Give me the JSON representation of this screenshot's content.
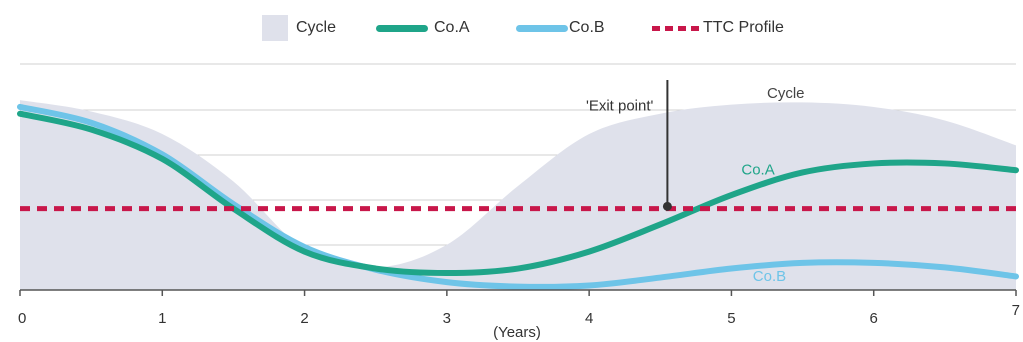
{
  "chart_data": {
    "type": "line",
    "title": "",
    "xlabel": "(Years)",
    "ylabel": "",
    "xlim": [
      0,
      7
    ],
    "ylim": [
      0,
      10
    ],
    "x_ticks": [
      "0",
      "1",
      "2",
      "3",
      "4",
      "5",
      "6",
      "7"
    ],
    "grid": "horizontal",
    "legend_position": "top-center",
    "legend": [
      {
        "label": "Cycle",
        "kind": "area"
      },
      {
        "label": "Co.A",
        "kind": "line"
      },
      {
        "label": "Co.B",
        "kind": "line"
      },
      {
        "label": "TTC Profile",
        "kind": "dashed"
      }
    ],
    "series": [
      {
        "name": "Cycle",
        "kind": "area",
        "color": "#dfe1eb",
        "x": [
          0,
          0.5,
          1,
          1.5,
          2,
          2.5,
          3,
          3.5,
          4,
          4.5,
          5,
          5.5,
          6,
          6.5,
          7
        ],
        "y": [
          8.4,
          7.9,
          6.9,
          4.8,
          1.8,
          1.0,
          2.0,
          4.6,
          6.9,
          7.8,
          8.2,
          8.3,
          8.1,
          7.5,
          6.4
        ]
      },
      {
        "name": "Co.A",
        "kind": "line",
        "color": "#1fa589",
        "x": [
          0,
          0.5,
          1,
          1.5,
          2,
          2.5,
          3,
          3.5,
          4,
          4.5,
          5,
          5.5,
          6,
          6.5,
          7
        ],
        "y": [
          7.8,
          7.1,
          5.8,
          3.6,
          1.7,
          0.95,
          0.75,
          0.95,
          1.7,
          2.9,
          4.2,
          5.2,
          5.6,
          5.6,
          5.3
        ]
      },
      {
        "name": "Co.B",
        "kind": "line",
        "color": "#6ec4e8",
        "x": [
          0,
          0.5,
          1,
          1.5,
          2,
          2.5,
          3,
          3.5,
          4,
          4.5,
          5,
          5.5,
          6,
          6.5,
          7
        ],
        "y": [
          8.1,
          7.4,
          6.0,
          3.8,
          1.9,
          0.9,
          0.35,
          0.15,
          0.2,
          0.55,
          0.95,
          1.2,
          1.2,
          1.0,
          0.6
        ]
      },
      {
        "name": "TTC Profile",
        "kind": "dashed",
        "color": "#c8174a",
        "x": [
          0,
          7
        ],
        "y": [
          3.6,
          3.6
        ]
      }
    ],
    "annotations": [
      {
        "text": "'Exit point'",
        "x": 4.55,
        "y": 3.7,
        "color": "#333333"
      },
      {
        "text": "Cycle",
        "x": 5.25,
        "y": 8.5,
        "color": "#444444"
      },
      {
        "text": "Co.A",
        "x": 5.07,
        "y": 5.1,
        "color": "#1fa589"
      },
      {
        "text": "Co.B",
        "x": 5.15,
        "y": 0.4,
        "color": "#6ec4e8"
      }
    ]
  }
}
